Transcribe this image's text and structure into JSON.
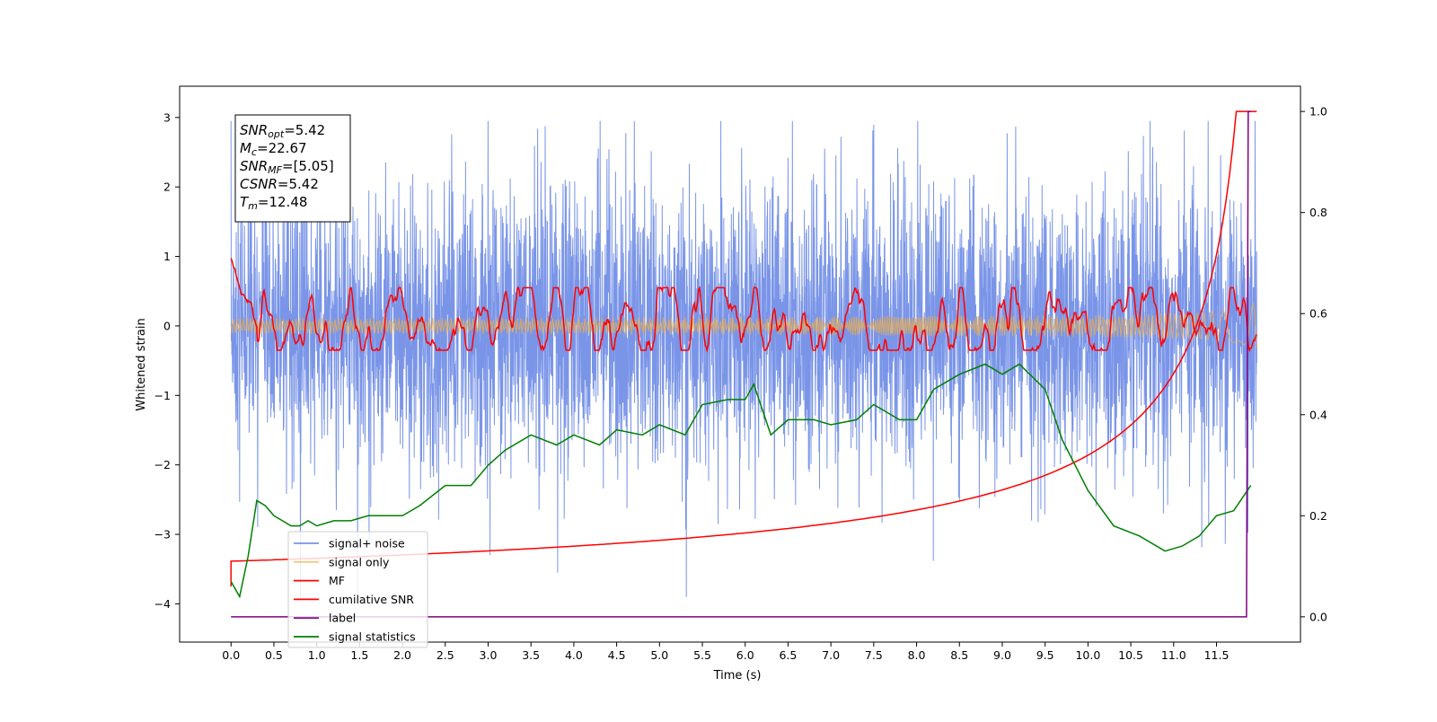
{
  "chart_data": {
    "type": "line",
    "xlabel": "Time (s)",
    "ylabel": "Whitened strain",
    "xlim": [
      -0.6,
      12.48
    ],
    "ylim": [
      -4.55,
      3.45
    ],
    "y2lim": [
      -0.05,
      1.05
    ],
    "xticks": [
      "0.0",
      "0.5",
      "1.0",
      "1.5",
      "2.0",
      "2.5",
      "3.0",
      "3.5",
      "4.0",
      "4.5",
      "5.0",
      "5.5",
      "6.0",
      "6.5",
      "7.0",
      "7.5",
      "8.0",
      "8.5",
      "9.0",
      "9.5",
      "10.0",
      "10.5",
      "11.0",
      "11.5"
    ],
    "yticks": [
      "3",
      "2",
      "1",
      "0",
      "−1",
      "−2",
      "−3",
      "−4"
    ],
    "y2ticks": [
      "1.0",
      "0.8",
      "0.6",
      "0.4",
      "0.2",
      "0.0"
    ],
    "grid": false,
    "legend_position": "lower-left",
    "colors": {
      "signal_noise": "#6b8ae6",
      "signal_only": "#f5b041",
      "mf": "#ff0000",
      "cumulative_snr": "#ff0000",
      "label": "#800080",
      "signal_statistics": "#008000"
    },
    "legend": [
      {
        "key": "signal_noise",
        "label": "signal+ noise"
      },
      {
        "key": "signal_only",
        "label": "signal only"
      },
      {
        "key": "mf",
        "label": "MF"
      },
      {
        "key": "cumulative_snr",
        "label": "cumilative SNR"
      },
      {
        "key": "label",
        "label": "label"
      },
      {
        "key": "signal_statistics",
        "label": "signal statistics"
      }
    ],
    "annotation": [
      {
        "sym": "SNR",
        "sub": "opt",
        "value": "=5.42"
      },
      {
        "sym": "M",
        "sub": "c",
        "value": "=22.67"
      },
      {
        "sym": "SNR",
        "sub": "MF",
        "value": "=[5.05]"
      },
      {
        "sym": "CSNR",
        "sub": "",
        "value": "=5.42"
      },
      {
        "sym": "T",
        "sub": "m",
        "value": "=12.48"
      }
    ],
    "series": [
      {
        "key": "signal_statistics",
        "name": "signal statistics",
        "axis": "right",
        "x": [
          0.0,
          0.1,
          0.2,
          0.3,
          0.4,
          0.5,
          0.6,
          0.7,
          0.8,
          0.9,
          1.0,
          1.2,
          1.4,
          1.6,
          1.8,
          2.0,
          2.2,
          2.5,
          2.8,
          3.0,
          3.2,
          3.5,
          3.8,
          4.0,
          4.3,
          4.5,
          4.8,
          5.0,
          5.3,
          5.5,
          5.8,
          6.0,
          6.1,
          6.3,
          6.5,
          6.8,
          7.0,
          7.3,
          7.5,
          7.8,
          8.0,
          8.2,
          8.5,
          8.8,
          9.0,
          9.2,
          9.5,
          9.7,
          10.0,
          10.3,
          10.6,
          10.9,
          11.1,
          11.3,
          11.5,
          11.7,
          11.9
        ],
        "y": [
          0.07,
          0.04,
          0.12,
          0.23,
          0.22,
          0.2,
          0.19,
          0.18,
          0.18,
          0.19,
          0.18,
          0.19,
          0.19,
          0.2,
          0.2,
          0.2,
          0.22,
          0.26,
          0.26,
          0.3,
          0.33,
          0.36,
          0.34,
          0.36,
          0.34,
          0.37,
          0.36,
          0.38,
          0.36,
          0.42,
          0.43,
          0.43,
          0.46,
          0.36,
          0.39,
          0.39,
          0.38,
          0.39,
          0.42,
          0.39,
          0.39,
          0.45,
          0.48,
          0.5,
          0.48,
          0.5,
          0.45,
          0.35,
          0.25,
          0.18,
          0.16,
          0.13,
          0.14,
          0.16,
          0.2,
          0.21,
          0.26
        ]
      },
      {
        "key": "label",
        "name": "label",
        "axis": "right",
        "x": [
          0.0,
          11.85,
          11.87,
          11.9
        ],
        "y": [
          0.0,
          0.0,
          1.0,
          1.0
        ]
      }
    ]
  }
}
